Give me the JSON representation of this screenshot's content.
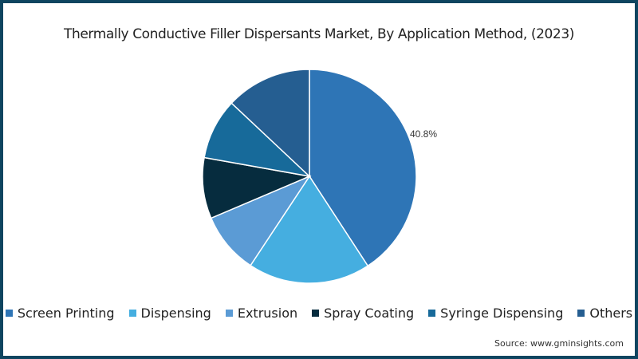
{
  "title": "Thermally Conductive Filler Dispersants Market, By Application Method, (2023)",
  "source": "Source: www.gminsights.com",
  "chart_data": {
    "type": "pie",
    "title": "Thermally Conductive Filler Dispersants Market, By Application Method, (2023)",
    "categories": [
      "Screen Printing",
      "Dispensing",
      "Extrusion",
      "Spray Coating",
      "Syringe Dispensing",
      "Others"
    ],
    "values": [
      40.8,
      18.5,
      9.3,
      9.2,
      9.2,
      13.0
    ],
    "colors": [
      "#2e75b6",
      "#45aee0",
      "#5b9bd5",
      "#062c3e",
      "#176a9a",
      "#255e91"
    ],
    "annotations": [
      {
        "category": "Screen Printing",
        "label": "40.8%"
      }
    ],
    "legend_position": "bottom",
    "start_angle_deg": 0,
    "direction": "clockwise"
  },
  "legend": [
    {
      "label": "Screen Printing",
      "color": "#2e75b6"
    },
    {
      "label": "Dispensing",
      "color": "#45aee0"
    },
    {
      "label": "Extrusion",
      "color": "#5b9bd5"
    },
    {
      "label": "Spray Coating",
      "color": "#062c3e"
    },
    {
      "label": "Syringe Dispensing",
      "color": "#176a9a"
    },
    {
      "label": "Others",
      "color": "#255e91"
    }
  ],
  "colors": {
    "border": "#0e4560"
  }
}
